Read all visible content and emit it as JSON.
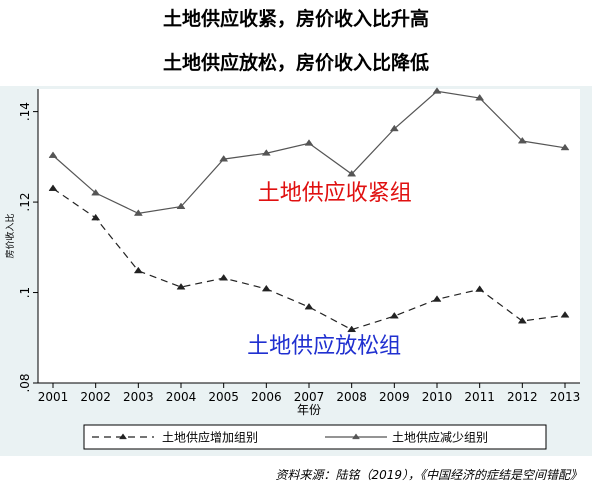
{
  "headlines": [
    "土地供应收紧，房价收入比升高",
    "土地供应放松，房价收入比降低"
  ],
  "source_note": "资料来源：陆铭（2019），《中国经济的症结是空间错配》",
  "chart_data": {
    "type": "line",
    "title": "",
    "xlabel": "年份",
    "ylabel": "房价收入比",
    "x": [
      2001,
      2002,
      2003,
      2004,
      2005,
      2006,
      2007,
      2008,
      2009,
      2010,
      2011,
      2012,
      2013
    ],
    "ylim": [
      0.08,
      0.145
    ],
    "yticks": [
      0.08,
      0.1,
      0.12,
      0.14
    ],
    "ytick_labels": [
      ".08",
      ".1",
      ".12",
      ".14"
    ],
    "grid": false,
    "legend_position": "bottom",
    "series": [
      {
        "name": "土地供应增加组别",
        "style": "dashed",
        "marker": "triangle",
        "values": [
          0.123,
          0.1165,
          0.1048,
          0.1012,
          0.1032,
          0.1008,
          0.0968,
          0.0918,
          0.0948,
          0.0985,
          0.1007,
          0.0937,
          0.095
        ]
      },
      {
        "name": "土地供应减少组别",
        "style": "solid",
        "marker": "triangle",
        "values": [
          0.1303,
          0.122,
          0.1175,
          0.119,
          0.1295,
          0.1308,
          0.133,
          0.1262,
          0.1362,
          0.1445,
          0.143,
          0.1335,
          0.132
        ]
      }
    ],
    "annotations": [
      {
        "text": "土地供应收紧组",
        "color": "#e01010",
        "x": 2005.8,
        "y": 0.1205
      },
      {
        "text": "土地供应放松组",
        "color": "#2030d0",
        "x": 2005.55,
        "y": 0.0866
      }
    ],
    "colors": {
      "plot_background": "#ffffff",
      "figure_background": "#eaf2f3",
      "series_increase": "#222222",
      "series_decrease": "#555555"
    }
  }
}
